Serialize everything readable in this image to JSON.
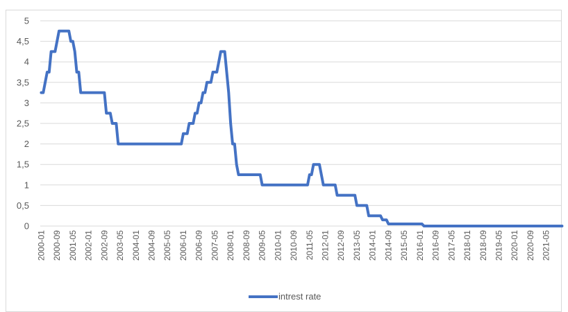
{
  "chart_data": {
    "type": "line",
    "title": "",
    "xlabel": "",
    "ylabel": "",
    "ylim": [
      0,
      5
    ],
    "y_ticks": [
      "0",
      "0,5",
      "1",
      "1,5",
      "2",
      "2,5",
      "3",
      "3,5",
      "4",
      "4,5",
      "5"
    ],
    "x_tick_labels": [
      "2000-01",
      "2000-09",
      "2001-05",
      "2002-01",
      "2002-09",
      "2003-05",
      "2004-01",
      "2004-09",
      "2005-05",
      "2006-01",
      "2006-09",
      "2007-05",
      "2008-01",
      "2008-09",
      "2009-05",
      "2010-01",
      "2010-09",
      "2011-05",
      "2012-01",
      "2012-09",
      "2013-05",
      "2014-01",
      "2014-09",
      "2015-05",
      "2016-01",
      "2016-09",
      "2017-05",
      "2018-01",
      "2018-09",
      "2019-05",
      "2020-01",
      "2020-09",
      "2021-05"
    ],
    "grid": "horizontal",
    "legend_position": "bottom",
    "colors": {
      "series": "#4472c4",
      "grid": "#d9d9d9",
      "text": "#595959"
    },
    "series": [
      {
        "name": "intrest rate",
        "points": [
          [
            "2000-01",
            3.25
          ],
          [
            "2000-02",
            3.25
          ],
          [
            "2000-03",
            3.5
          ],
          [
            "2000-04",
            3.75
          ],
          [
            "2000-05",
            3.75
          ],
          [
            "2000-06",
            4.25
          ],
          [
            "2000-07",
            4.25
          ],
          [
            "2000-08",
            4.25
          ],
          [
            "2000-09",
            4.5
          ],
          [
            "2000-10",
            4.75
          ],
          [
            "2000-11",
            4.75
          ],
          [
            "2000-12",
            4.75
          ],
          [
            "2001-01",
            4.75
          ],
          [
            "2001-02",
            4.75
          ],
          [
            "2001-03",
            4.75
          ],
          [
            "2001-04",
            4.5
          ],
          [
            "2001-05",
            4.5
          ],
          [
            "2001-06",
            4.25
          ],
          [
            "2001-07",
            3.75
          ],
          [
            "2001-08",
            3.75
          ],
          [
            "2001-09",
            3.25
          ],
          [
            "2001-10",
            3.25
          ],
          [
            "2001-11",
            3.25
          ],
          [
            "2002-09",
            3.25
          ],
          [
            "2002-10",
            2.75
          ],
          [
            "2002-11",
            2.75
          ],
          [
            "2002-12",
            2.75
          ],
          [
            "2003-01",
            2.5
          ],
          [
            "2003-02",
            2.5
          ],
          [
            "2003-03",
            2.5
          ],
          [
            "2003-04",
            2.0
          ],
          [
            "2003-05",
            2.0
          ],
          [
            "2005-11",
            2.0
          ],
          [
            "2005-12",
            2.0
          ],
          [
            "2006-01",
            2.25
          ],
          [
            "2006-02",
            2.25
          ],
          [
            "2006-03",
            2.25
          ],
          [
            "2006-04",
            2.5
          ],
          [
            "2006-05",
            2.5
          ],
          [
            "2006-06",
            2.5
          ],
          [
            "2006-07",
            2.75
          ],
          [
            "2006-08",
            2.75
          ],
          [
            "2006-09",
            3.0
          ],
          [
            "2006-10",
            3.0
          ],
          [
            "2006-11",
            3.25
          ],
          [
            "2006-12",
            3.25
          ],
          [
            "2007-01",
            3.5
          ],
          [
            "2007-02",
            3.5
          ],
          [
            "2007-03",
            3.5
          ],
          [
            "2007-04",
            3.75
          ],
          [
            "2007-05",
            3.75
          ],
          [
            "2007-06",
            3.75
          ],
          [
            "2007-07",
            4.0
          ],
          [
            "2007-08",
            4.25
          ],
          [
            "2007-09",
            4.25
          ],
          [
            "2007-10",
            4.25
          ],
          [
            "2007-11",
            3.75
          ],
          [
            "2007-12",
            3.25
          ],
          [
            "2008-01",
            2.5
          ],
          [
            "2008-02",
            2.0
          ],
          [
            "2008-03",
            2.0
          ],
          [
            "2008-04",
            1.5
          ],
          [
            "2008-05",
            1.25
          ],
          [
            "2008-06",
            1.25
          ],
          [
            "2009-04",
            1.25
          ],
          [
            "2009-05",
            1.0
          ],
          [
            "2011-03",
            1.0
          ],
          [
            "2011-04",
            1.0
          ],
          [
            "2011-05",
            1.25
          ],
          [
            "2011-06",
            1.25
          ],
          [
            "2011-07",
            1.5
          ],
          [
            "2011-08",
            1.5
          ],
          [
            "2011-09",
            1.5
          ],
          [
            "2011-10",
            1.5
          ],
          [
            "2011-11",
            1.25
          ],
          [
            "2011-12",
            1.0
          ],
          [
            "2012-01",
            1.0
          ],
          [
            "2012-06",
            1.0
          ],
          [
            "2012-07",
            0.75
          ],
          [
            "2012-08",
            0.75
          ],
          [
            "2013-04",
            0.75
          ],
          [
            "2013-05",
            0.5
          ],
          [
            "2013-06",
            0.5
          ],
          [
            "2013-10",
            0.5
          ],
          [
            "2013-11",
            0.25
          ],
          [
            "2013-12",
            0.25
          ],
          [
            "2014-05",
            0.25
          ],
          [
            "2014-06",
            0.15
          ],
          [
            "2014-07",
            0.15
          ],
          [
            "2014-08",
            0.15
          ],
          [
            "2014-09",
            0.05
          ],
          [
            "2014-10",
            0.05
          ],
          [
            "2015-11",
            0.05
          ],
          [
            "2015-12",
            0.05
          ],
          [
            "2016-01",
            0.05
          ],
          [
            "2016-02",
            0.05
          ],
          [
            "2016-03",
            0.0
          ],
          [
            "2022-01",
            0.0
          ]
        ]
      }
    ]
  }
}
